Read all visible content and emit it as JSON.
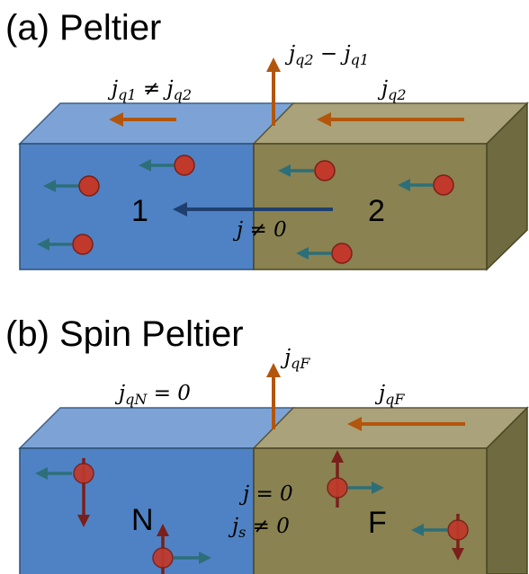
{
  "panel_a": {
    "title": "(a) Peltier",
    "heat_current_left": "j_{q1} ≠ j_{q2}",
    "heat_current_right": "j_{q2}",
    "heat_current_out": "j_{q2} − j_{q1}",
    "charge_current": "j ≠ 0",
    "region_left": "1",
    "region_right": "2"
  },
  "panel_b": {
    "title": "(b) Spin Peltier",
    "heat_current_left": "j_{qN} = 0",
    "heat_current_right": "j_{qF}",
    "heat_current_out": "j_{qF}",
    "charge_current": "j = 0",
    "spin_current": "j_s ≠ 0",
    "region_left": "N",
    "region_right": "F"
  },
  "colors": {
    "left_block": "#4f82c4",
    "right_block": "#8a8251",
    "heat_arrow": "#b3560d",
    "particle": "#c0392b",
    "particle_arrow": "#2d6f78",
    "spin_arrow": "#7b1f1a",
    "current_arrow": "#1f3f6e"
  }
}
